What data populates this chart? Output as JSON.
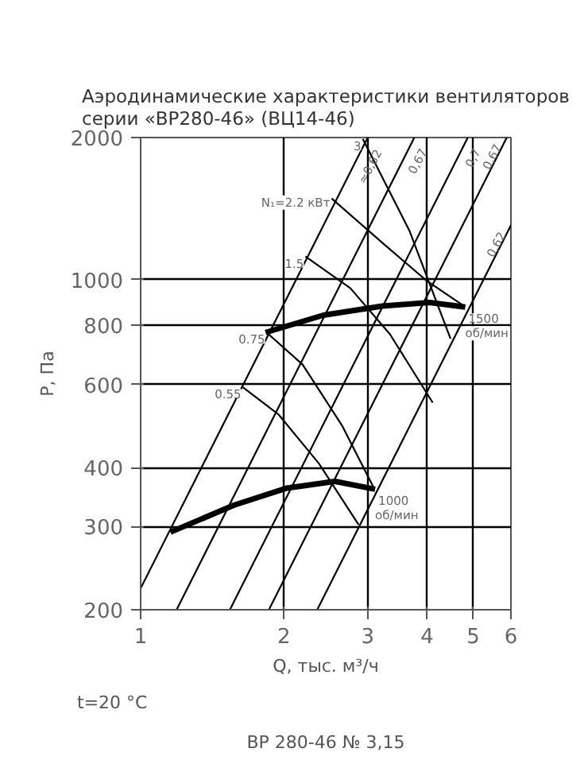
{
  "chart_data": {
    "type": "line",
    "title": "Аэродинамические характеристики вентиляторов\nсерии «ВР280-46» (ВЦ14-46)",
    "xlabel": "Q, тыс. м³/ч",
    "ylabel": "P, Па",
    "log": "xy",
    "grid": true,
    "marker": "none",
    "line_style": "solid",
    "xlim": [
      1,
      6
    ],
    "ylim": [
      200,
      2000
    ],
    "xticks": [
      1,
      2,
      3,
      4,
      5,
      6
    ],
    "yticks": [
      200,
      300,
      400,
      600,
      800,
      1000,
      2000
    ],
    "annotations": [
      "t=20 °C",
      "ВР 280-46 № 3,15"
    ],
    "series": [
      {
        "name": "1500 об/мин",
        "color": "#000000",
        "x": [
          1.83,
          2.42,
          3.22,
          4.05,
          4.81
        ],
        "values": [
          773,
          841,
          879,
          895,
          875
        ]
      },
      {
        "name": "1000 об/мин",
        "color": "#000000",
        "x": [
          1.155,
          1.57,
          2.03,
          2.56,
          3.11
        ],
        "values": [
          292,
          333,
          362,
          374,
          360
        ]
      },
      {
        "name": "≈0,62",
        "color": "#000000",
        "x": [
          1,
          3
        ],
        "values": [
          222,
          2000
        ]
      },
      {
        "name": "0,67",
        "color": "#000000",
        "x": [
          1.19,
          3.76
        ],
        "values": [
          200,
          2000
        ]
      },
      {
        "name": "0,7",
        "color": "#000000",
        "x": [
          1.54,
          4.87
        ],
        "values": [
          200,
          2000
        ]
      },
      {
        "name": "0,67",
        "color": "#000000",
        "x": [
          1.86,
          5.88
        ],
        "values": [
          200,
          2000
        ]
      },
      {
        "name": "0,62",
        "color": "#000000",
        "x": [
          2.35,
          6
        ],
        "values": [
          200,
          1304
        ]
      },
      {
        "name": "3",
        "color": "#000000",
        "x": [
          2.93,
          3.67,
          4.48
        ],
        "values": [
          1986,
          1271,
          750
        ]
      },
      {
        "name": "N₁=2.2 кВт",
        "color": "#000000",
        "x": [
          2.52,
          3.22,
          3.99,
          4.8
        ],
        "values": [
          1486,
          1197,
          995,
          877
        ]
      },
      {
        "name": "1.5",
        "color": "#000000",
        "x": [
          2.22,
          2.76,
          3.34,
          4.11
        ],
        "values": [
          1120,
          959,
          767,
          549
        ]
      },
      {
        "name": "0.75",
        "color": "#000000",
        "x": [
          1.84,
          2.19,
          2.65,
          3.1
        ],
        "values": [
          773,
          661,
          491,
          360
        ]
      },
      {
        "name": "0.55",
        "color": "#000000",
        "x": [
          1.64,
          1.95,
          2.37,
          2.87
        ],
        "values": [
          592,
          518,
          408,
          303
        ]
      }
    ]
  }
}
